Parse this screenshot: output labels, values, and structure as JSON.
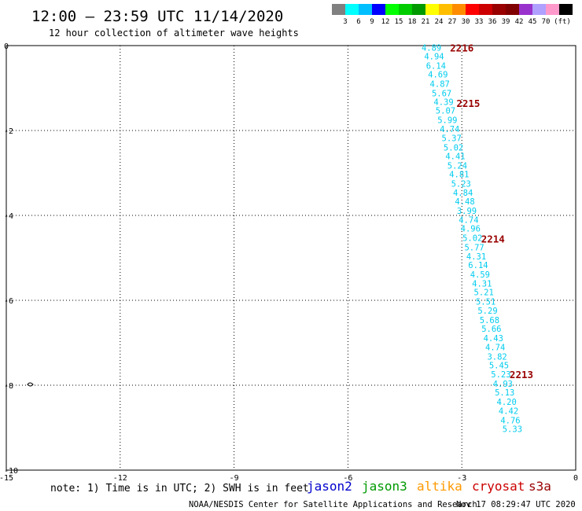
{
  "title": "12:00 – 23:59 UTC 11/14/2020",
  "subtitle": "12 hour collection of altimeter wave heights",
  "note": "note: 1) Time is in UTC; 2) SWH is in feet",
  "footer_left": "NOAA/NESDIS Center for Satellite Applications and Research",
  "footer_right": "Nov 17 08:29:47 UTC 2020",
  "colorbar": {
    "colors": [
      "#808080",
      "#00ffff",
      "#00bfff",
      "#0000ff",
      "#00ff00",
      "#00cc00",
      "#009900",
      "#ffff00",
      "#ffbf00",
      "#ff8c00",
      "#ff0000",
      "#cc0000",
      "#990000",
      "#800000",
      "#9932cc",
      "#b0a0ff",
      "#ff99cc",
      "#000000"
    ],
    "labels": [
      "3",
      "6",
      "9",
      "12",
      "15",
      "18",
      "21",
      "24",
      "27",
      "30",
      "33",
      "36",
      "39",
      "42",
      "45",
      "70",
      "(ft)"
    ]
  },
  "legend": [
    {
      "name": "jason2",
      "color": "#0000cc"
    },
    {
      "name": "jason3",
      "color": "#009900"
    },
    {
      "name": "altika",
      "color": "#ff9900"
    },
    {
      "name": "cryosat",
      "color": "#cc0000"
    },
    {
      "name": "s3a",
      "color": "#990000"
    }
  ],
  "chart_data": {
    "type": "scatter",
    "title": "12:00 – 23:59 UTC 11/14/2020",
    "subtitle": "12 hour collection of altimeter wave heights",
    "xlim": [
      -15,
      0
    ],
    "ylim": [
      -10,
      0
    ],
    "x_ticks": [
      "-15",
      "-12",
      "-9",
      "-6",
      "-3",
      "0"
    ],
    "y_ticks": [
      "0",
      "-2",
      "-4",
      "-6",
      "-8",
      "-10"
    ],
    "grid": true,
    "value_color": "#00ccee",
    "points": [
      {
        "x": -3.8,
        "y": -0.05,
        "label": "4.89"
      },
      {
        "x": -3.73,
        "y": -0.25,
        "label": "4.94"
      },
      {
        "x": -3.68,
        "y": -0.47,
        "label": "6.14"
      },
      {
        "x": -3.63,
        "y": -0.68,
        "label": "4.69"
      },
      {
        "x": -3.58,
        "y": -0.9,
        "label": "4.87"
      },
      {
        "x": -3.53,
        "y": -1.12,
        "label": "5.67"
      },
      {
        "x": -3.48,
        "y": -1.32,
        "label": "4.39"
      },
      {
        "x": -3.43,
        "y": -1.53,
        "label": "5.07"
      },
      {
        "x": -3.38,
        "y": -1.75,
        "label": "5.99"
      },
      {
        "x": -3.32,
        "y": -1.96,
        "label": "4.74"
      },
      {
        "x": -3.27,
        "y": -2.18,
        "label": "5.37"
      },
      {
        "x": -3.22,
        "y": -2.4,
        "label": "5.02"
      },
      {
        "x": -3.17,
        "y": -2.6,
        "label": "4.41"
      },
      {
        "x": -3.12,
        "y": -2.82,
        "label": "5.24"
      },
      {
        "x": -3.07,
        "y": -3.03,
        "label": "4.81"
      },
      {
        "x": -3.02,
        "y": -3.25,
        "label": "5.23"
      },
      {
        "x": -2.97,
        "y": -3.46,
        "label": "4.84"
      },
      {
        "x": -2.92,
        "y": -3.67,
        "label": "4.48"
      },
      {
        "x": -2.87,
        "y": -3.89,
        "label": "3.99"
      },
      {
        "x": -2.82,
        "y": -4.1,
        "label": "4.74"
      },
      {
        "x": -2.77,
        "y": -4.31,
        "label": "4.96"
      },
      {
        "x": -2.72,
        "y": -4.53,
        "label": "5.02"
      },
      {
        "x": -2.67,
        "y": -4.75,
        "label": "5.77"
      },
      {
        "x": -2.62,
        "y": -4.96,
        "label": "4.31"
      },
      {
        "x": -2.57,
        "y": -5.17,
        "label": "6.14"
      },
      {
        "x": -2.52,
        "y": -5.39,
        "label": "4.59"
      },
      {
        "x": -2.47,
        "y": -5.6,
        "label": "4.31"
      },
      {
        "x": -2.42,
        "y": -5.81,
        "label": "5.21"
      },
      {
        "x": -2.37,
        "y": -6.03,
        "label": "5.51"
      },
      {
        "x": -2.32,
        "y": -6.24,
        "label": "5.29"
      },
      {
        "x": -2.27,
        "y": -6.46,
        "label": "5.68"
      },
      {
        "x": -2.22,
        "y": -6.67,
        "label": "5.66"
      },
      {
        "x": -2.17,
        "y": -6.89,
        "label": "4.43"
      },
      {
        "x": -2.12,
        "y": -7.1,
        "label": "4.74"
      },
      {
        "x": -2.07,
        "y": -7.32,
        "label": "3.82"
      },
      {
        "x": -2.02,
        "y": -7.53,
        "label": "5.45"
      },
      {
        "x": -1.97,
        "y": -7.74,
        "label": "5.23"
      },
      {
        "x": -1.92,
        "y": -7.96,
        "label": "4.93"
      },
      {
        "x": -1.87,
        "y": -8.17,
        "label": "5.13"
      },
      {
        "x": -1.82,
        "y": -8.39,
        "label": "4.20"
      },
      {
        "x": -1.77,
        "y": -8.6,
        "label": "4.42"
      },
      {
        "x": -1.72,
        "y": -8.82,
        "label": "4.76"
      },
      {
        "x": -1.67,
        "y": -9.03,
        "label": "5.33"
      }
    ],
    "pass_labels": [
      {
        "text": "2216",
        "x": -3.0,
        "y": -0.05
      },
      {
        "text": "2215",
        "x": -2.83,
        "y": -1.35
      },
      {
        "text": "2214",
        "x": -2.18,
        "y": -4.55
      },
      {
        "text": "2213",
        "x": -1.43,
        "y": -7.74
      }
    ],
    "pass_color": "#990000"
  }
}
